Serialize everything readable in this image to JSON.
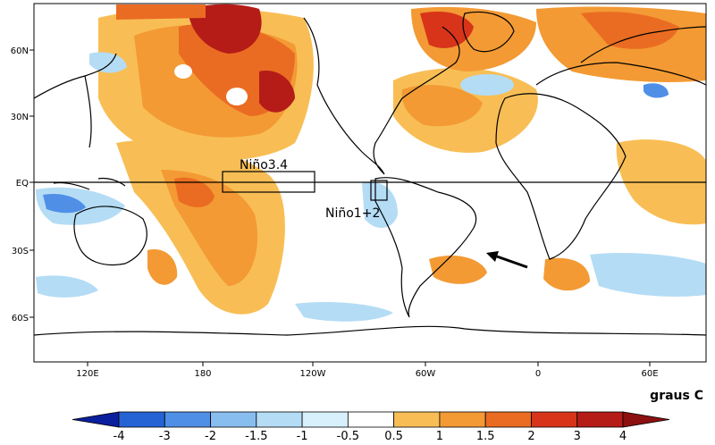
{
  "map": {
    "lat_ticks": [
      "60N",
      "30N",
      "EQ",
      "30S",
      "60S"
    ],
    "lon_ticks": [
      "120E",
      "180",
      "120W",
      "60W",
      "0",
      "60E"
    ],
    "regions": [
      {
        "name": "Niño3.4"
      },
      {
        "name": "Niño1+2"
      }
    ],
    "units": "graus C",
    "arrow": "arrow-icon"
  },
  "colorbar": {
    "labels": [
      "-4",
      "-3",
      "-2",
      "-1.5",
      "-1",
      "-0.5",
      "0.5",
      "1",
      "1.5",
      "2",
      "3",
      "4"
    ],
    "colors": [
      "#0a1f9e",
      "#2563d4",
      "#4f8fe6",
      "#88bdf0",
      "#b4dcf5",
      "#d8f0fb",
      "#ffffff",
      "#f8be55",
      "#f39a34",
      "#ea6c22",
      "#d7341a",
      "#b51c18",
      "#8c1010"
    ]
  }
}
